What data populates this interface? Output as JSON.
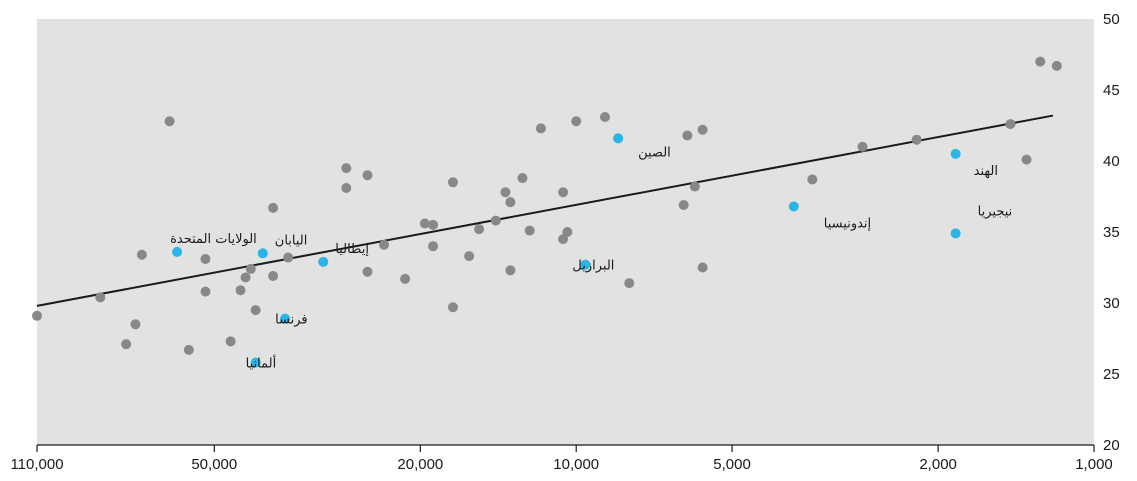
{
  "chart_data": {
    "type": "scatter",
    "title": "",
    "xlabel": "",
    "ylabel": "",
    "x_scale": "log-reversed",
    "xlim": [
      110000,
      1000
    ],
    "ylim": [
      20,
      50
    ],
    "x_ticks": [
      110000,
      50000,
      20000,
      10000,
      5000,
      2000,
      1000
    ],
    "x_tick_labels": [
      "110,000",
      "50,000",
      "20,000",
      "10,000",
      "5,000",
      "2,000",
      "1,000"
    ],
    "y_ticks": [
      20,
      25,
      30,
      35,
      40,
      45,
      50
    ],
    "y_tick_labels": [
      "20",
      "25",
      "30",
      "35",
      "40",
      "45",
      "50"
    ],
    "grid": false,
    "background": "#e2e2e2",
    "colors": {
      "other": "#888888",
      "highlight": "#29b6e6",
      "trend": "#1a1a1a"
    },
    "trend_line": {
      "x": [
        110000,
        1200
      ],
      "y": [
        29.8,
        43.2
      ]
    },
    "highlighted": [
      {
        "label": "الولايات المتحدة",
        "x": 59000,
        "y": 33.6
      },
      {
        "label": "اليابان",
        "x": 40300,
        "y": 33.5
      },
      {
        "label": "إيطاليا",
        "x": 30800,
        "y": 32.9
      },
      {
        "label": "فرنسا",
        "x": 36500,
        "y": 28.9
      },
      {
        "label": "ألمانيا",
        "x": 41600,
        "y": 25.8
      },
      {
        "label": "الصين",
        "x": 8300,
        "y": 41.6
      },
      {
        "label": "البرازيل",
        "x": 9600,
        "y": 32.7
      },
      {
        "label": "إندونيسيا",
        "x": 3800,
        "y": 36.8
      },
      {
        "label": "الهند",
        "x": 1850,
        "y": 40.5
      },
      {
        "label": "نيجيريا",
        "x": 1850,
        "y": 34.9
      }
    ],
    "others": [
      {
        "x": 110000,
        "y": 29.1
      },
      {
        "x": 83000,
        "y": 30.4
      },
      {
        "x": 74000,
        "y": 27.1
      },
      {
        "x": 71000,
        "y": 28.5
      },
      {
        "x": 69000,
        "y": 33.4
      },
      {
        "x": 61000,
        "y": 42.8
      },
      {
        "x": 56000,
        "y": 26.7
      },
      {
        "x": 52000,
        "y": 30.8
      },
      {
        "x": 52000,
        "y": 33.1
      },
      {
        "x": 46500,
        "y": 27.3
      },
      {
        "x": 44500,
        "y": 30.9
      },
      {
        "x": 43500,
        "y": 31.8
      },
      {
        "x": 42500,
        "y": 32.4
      },
      {
        "x": 41600,
        "y": 29.5
      },
      {
        "x": 38500,
        "y": 31.9
      },
      {
        "x": 38500,
        "y": 36.7
      },
      {
        "x": 36000,
        "y": 33.2
      },
      {
        "x": 27800,
        "y": 38.1
      },
      {
        "x": 27800,
        "y": 39.5
      },
      {
        "x": 25300,
        "y": 39.0
      },
      {
        "x": 25300,
        "y": 32.2
      },
      {
        "x": 23500,
        "y": 34.1
      },
      {
        "x": 21400,
        "y": 31.7
      },
      {
        "x": 19600,
        "y": 35.6
      },
      {
        "x": 18900,
        "y": 35.5
      },
      {
        "x": 18900,
        "y": 34.0
      },
      {
        "x": 17300,
        "y": 29.7
      },
      {
        "x": 17300,
        "y": 38.5
      },
      {
        "x": 16100,
        "y": 33.3
      },
      {
        "x": 15400,
        "y": 35.2
      },
      {
        "x": 14300,
        "y": 35.8
      },
      {
        "x": 13700,
        "y": 37.8
      },
      {
        "x": 13400,
        "y": 32.3
      },
      {
        "x": 13400,
        "y": 37.1
      },
      {
        "x": 12700,
        "y": 38.8
      },
      {
        "x": 12300,
        "y": 35.1
      },
      {
        "x": 11700,
        "y": 42.3
      },
      {
        "x": 10600,
        "y": 37.8
      },
      {
        "x": 10600,
        "y": 34.5
      },
      {
        "x": 10400,
        "y": 35.0
      },
      {
        "x": 10000,
        "y": 42.8
      },
      {
        "x": 8800,
        "y": 43.1
      },
      {
        "x": 7900,
        "y": 31.4
      },
      {
        "x": 6200,
        "y": 36.9
      },
      {
        "x": 5900,
        "y": 38.2
      },
      {
        "x": 5700,
        "y": 32.5
      },
      {
        "x": 5700,
        "y": 42.2
      },
      {
        "x": 6100,
        "y": 41.8
      },
      {
        "x": 3500,
        "y": 38.7
      },
      {
        "x": 2800,
        "y": 41.0
      },
      {
        "x": 2200,
        "y": 41.5
      },
      {
        "x": 1450,
        "y": 42.6
      },
      {
        "x": 1350,
        "y": 40.1
      },
      {
        "x": 1270,
        "y": 47.0
      },
      {
        "x": 1180,
        "y": 46.7
      }
    ]
  }
}
